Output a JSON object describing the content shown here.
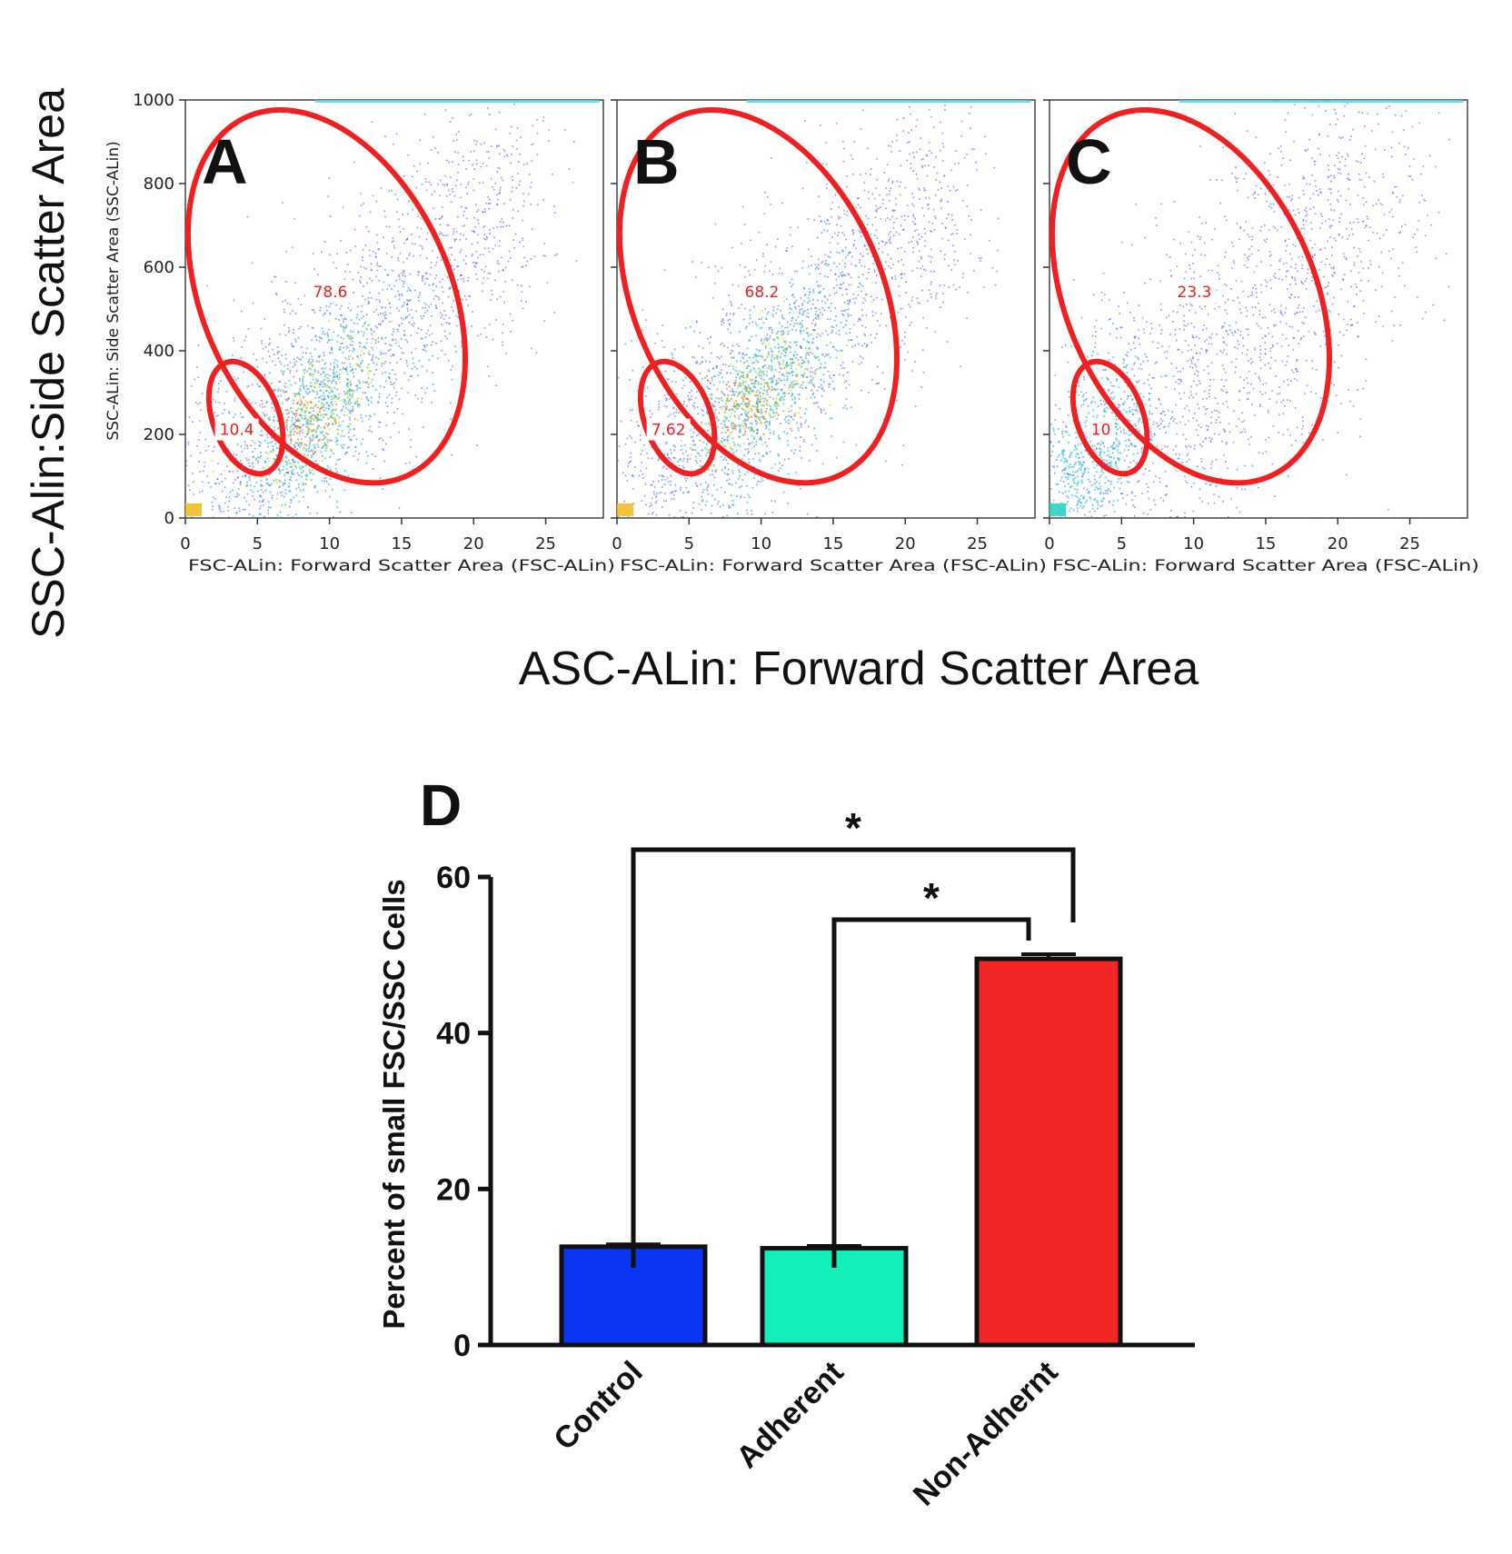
{
  "figure": {
    "global_ylabel": "SSC-Alin:Side Scatter Area",
    "global_xlabel": "ASC-ALin: Forward Scatter Area"
  },
  "chart_data": [
    {
      "type": "scatter",
      "panel_label": "A",
      "xlabel": "FSC-ALin: Forward Scatter Area (FSC-ALin)",
      "ylabel": "SSC-ALin: Side Scatter Area (SSC-ALin)",
      "xlim": [
        0,
        29
      ],
      "ylim": [
        0,
        1000
      ],
      "x_ticks": [
        0,
        5,
        10,
        15,
        20,
        25
      ],
      "y_ticks": [
        0,
        200,
        400,
        600,
        800,
        1000
      ],
      "density_peak": {
        "x": 9,
        "y": 240,
        "level": "high"
      },
      "gates": [
        {
          "name": "large",
          "label": "78.6",
          "center": [
            9.8,
            530
          ],
          "rx": 8.6,
          "ry": 470,
          "angle_deg": -24
        },
        {
          "name": "small",
          "label": "10.4",
          "center": [
            4.2,
            240
          ],
          "rx": 2.3,
          "ry": 140,
          "angle_deg": -20
        }
      ]
    },
    {
      "type": "scatter",
      "panel_label": "B",
      "xlabel": "FSC-ALin: Forward Scatter Area (FSC-ALin)",
      "ylabel": "",
      "xlim": [
        0,
        29
      ],
      "ylim": [
        0,
        1000
      ],
      "x_ticks": [
        0,
        5,
        10,
        15,
        20,
        25
      ],
      "y_ticks": [
        0,
        200,
        400,
        600,
        800,
        1000
      ],
      "density_peak": {
        "x": 10,
        "y": 300,
        "level": "high"
      },
      "gates": [
        {
          "name": "large",
          "label": "68.2",
          "center": [
            9.8,
            530
          ],
          "rx": 8.6,
          "ry": 470,
          "angle_deg": -24
        },
        {
          "name": "small",
          "label": "7.62",
          "center": [
            4.2,
            240
          ],
          "rx": 2.3,
          "ry": 140,
          "angle_deg": -20
        }
      ]
    },
    {
      "type": "scatter",
      "panel_label": "C",
      "xlabel": "FSC-ALin: Forward Scatter Area (FSC-ALin)",
      "ylabel": "",
      "xlim": [
        0,
        29
      ],
      "ylim": [
        0,
        1000
      ],
      "x_ticks": [
        0,
        5,
        10,
        15,
        20,
        25
      ],
      "y_ticks": [
        0,
        200,
        400,
        600,
        800,
        1000
      ],
      "density_peak": {
        "x": 3,
        "y": 150,
        "level": "medium"
      },
      "gates": [
        {
          "name": "large",
          "label": "23.3",
          "center": [
            9.8,
            530
          ],
          "rx": 8.6,
          "ry": 470,
          "angle_deg": -24
        },
        {
          "name": "small",
          "label": "10",
          "center": [
            4.2,
            240
          ],
          "rx": 2.3,
          "ry": 140,
          "angle_deg": -20
        }
      ]
    },
    {
      "type": "bar",
      "panel_label": "D",
      "title": "",
      "xlabel": "",
      "ylabel": "Percent of  small FSC/SSC Cells",
      "ylim": [
        0,
        60
      ],
      "y_ticks": [
        0,
        20,
        40,
        60
      ],
      "categories": [
        "Control",
        "Adherent",
        "Non-Adhernt"
      ],
      "values": [
        12.6,
        12.4,
        49.5
      ],
      "errors": [
        0.3,
        0.3,
        0.6
      ],
      "colors": [
        "#0a35f5",
        "#10f0b8",
        "#f42525"
      ],
      "significance": [
        {
          "from": "Control",
          "to": "Non-Adhernt",
          "label": "*"
        },
        {
          "from": "Adherent",
          "to": "Non-Adhernt",
          "label": "*"
        }
      ]
    }
  ]
}
